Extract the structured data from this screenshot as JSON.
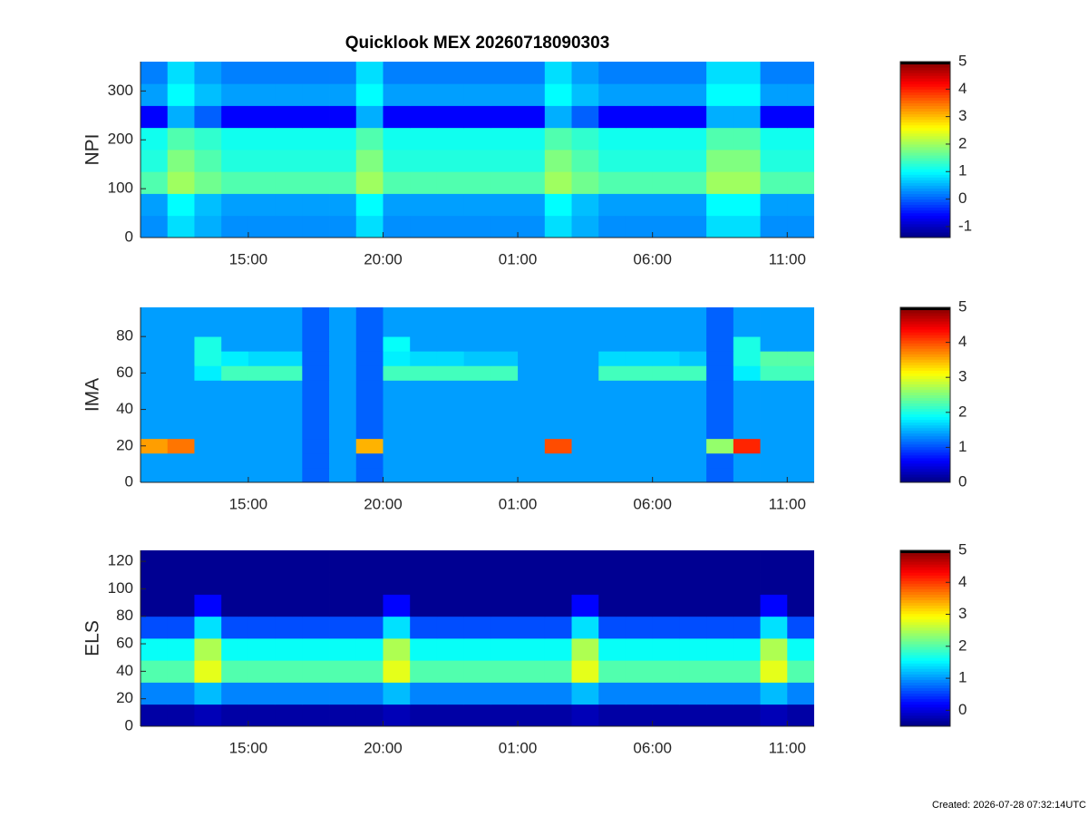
{
  "footer": "Created: 2026-07-28 07:32:14UTC",
  "chart_data": [
    {
      "type": "heatmap",
      "title": "Quicklook MEX 20260718090303",
      "ylabel": "NPI",
      "xlim": [
        0,
        25
      ],
      "ylim": [
        0,
        360
      ],
      "xticks": [
        {
          "value": 4,
          "label": "15:00"
        },
        {
          "value": 9,
          "label": "20:00"
        },
        {
          "value": 14,
          "label": "01:00"
        },
        {
          "value": 19,
          "label": "06:00"
        },
        {
          "value": 24,
          "label": "11:00"
        }
      ],
      "yticks": [
        0,
        100,
        200,
        300
      ],
      "clim": [
        -1.4,
        5
      ],
      "cticks": [
        -1,
        0,
        1,
        2,
        3,
        4,
        5
      ],
      "colormap": "jet",
      "x": [
        0.5,
        1.5,
        2.5,
        3.5,
        4.5,
        5.5,
        6.5,
        7.5,
        8.5,
        9.5,
        10.5,
        11.5,
        12.5,
        13.5,
        14.5,
        15.5,
        16.5,
        17.5,
        18.5,
        19.5,
        20.5,
        21.5,
        22.5,
        23.5,
        24.5
      ],
      "y": [
        22.5,
        67.5,
        112.5,
        157.5,
        202.5,
        247.5,
        292.5,
        337.5
      ],
      "z": [
        [
          0.3,
          0.8,
          0.5,
          0.3,
          0.3,
          0.3,
          0.3,
          0.3,
          0.8,
          0.3,
          0.3,
          0.3,
          0.3,
          0.3,
          0.3,
          0.8,
          0.5,
          0.3,
          0.3,
          0.3,
          0.3,
          0.8,
          0.8,
          0.3,
          0.3
        ],
        [
          0.4,
          1.0,
          0.6,
          0.4,
          0.4,
          0.4,
          0.4,
          0.4,
          1.0,
          0.4,
          0.4,
          0.4,
          0.4,
          0.4,
          0.4,
          1.0,
          0.6,
          0.4,
          0.4,
          0.4,
          0.4,
          1.0,
          1.0,
          0.4,
          0.4
        ],
        [
          1.5,
          2.0,
          1.7,
          1.5,
          1.5,
          1.5,
          1.5,
          1.5,
          2.0,
          1.5,
          1.5,
          1.5,
          1.5,
          1.5,
          1.5,
          2.0,
          1.7,
          1.5,
          1.5,
          1.5,
          1.5,
          2.0,
          2.0,
          1.5,
          1.5
        ],
        [
          1.2,
          1.8,
          1.5,
          1.2,
          1.2,
          1.2,
          1.2,
          1.2,
          1.8,
          1.2,
          1.2,
          1.2,
          1.2,
          1.2,
          1.2,
          1.8,
          1.5,
          1.2,
          1.2,
          1.2,
          1.2,
          1.8,
          1.8,
          1.2,
          1.2
        ],
        [
          1.1,
          1.5,
          1.3,
          1.1,
          1.1,
          1.1,
          1.1,
          1.1,
          1.5,
          1.1,
          1.1,
          1.1,
          1.1,
          1.1,
          1.1,
          1.5,
          1.3,
          1.1,
          1.1,
          1.1,
          1.1,
          1.5,
          1.5,
          1.1,
          1.1
        ],
        [
          -0.6,
          0.5,
          0.0,
          -0.6,
          -0.6,
          -0.6,
          -0.6,
          -0.6,
          0.5,
          -0.6,
          -0.6,
          -0.6,
          -0.6,
          -0.6,
          -0.6,
          0.5,
          0.0,
          -0.6,
          -0.6,
          -0.6,
          -0.6,
          0.5,
          0.5,
          -0.6,
          -0.6
        ],
        [
          0.4,
          1.0,
          0.6,
          0.4,
          0.4,
          0.4,
          0.4,
          0.4,
          1.0,
          0.4,
          0.4,
          0.4,
          0.4,
          0.4,
          0.4,
          1.0,
          0.6,
          0.4,
          0.4,
          0.4,
          0.4,
          1.0,
          1.0,
          0.4,
          0.4
        ],
        [
          0.2,
          0.8,
          0.4,
          0.2,
          0.2,
          0.2,
          0.2,
          0.2,
          0.8,
          0.2,
          0.2,
          0.2,
          0.2,
          0.2,
          0.2,
          0.8,
          0.4,
          0.2,
          0.2,
          0.2,
          0.2,
          0.8,
          0.8,
          0.2,
          0.2
        ]
      ]
    },
    {
      "type": "heatmap",
      "ylabel": "IMA",
      "xlim": [
        0,
        25
      ],
      "ylim": [
        0,
        96
      ],
      "xticks": [
        {
          "value": 4,
          "label": "15:00"
        },
        {
          "value": 9,
          "label": "20:00"
        },
        {
          "value": 14,
          "label": "01:00"
        },
        {
          "value": 19,
          "label": "06:00"
        },
        {
          "value": 24,
          "label": "11:00"
        }
      ],
      "yticks": [
        0,
        20,
        40,
        60,
        80
      ],
      "clim": [
        0,
        5
      ],
      "cticks": [
        0,
        1,
        2,
        3,
        4,
        5
      ],
      "colormap": "jet",
      "x": [
        0.5,
        1.5,
        2.5,
        3.5,
        4.5,
        5.5,
        6.5,
        7.5,
        8.5,
        9.5,
        10.5,
        11.5,
        12.5,
        13.5,
        14.5,
        15.5,
        16.5,
        17.5,
        18.5,
        19.5,
        20.5,
        21.5,
        22.5,
        23.5,
        24.5
      ],
      "y": [
        4,
        12,
        20,
        28,
        36,
        44,
        52,
        60,
        68,
        76,
        84,
        92
      ],
      "z": [
        [
          1.4,
          1.4,
          1.4,
          1.4,
          1.4,
          1.4,
          1.1,
          1.4,
          1.1,
          1.4,
          1.4,
          1.4,
          1.4,
          1.4,
          1.4,
          1.4,
          1.4,
          1.4,
          1.4,
          1.4,
          1.4,
          1.1,
          1.4,
          1.4,
          1.4
        ],
        [
          1.4,
          1.4,
          1.4,
          1.4,
          1.4,
          1.4,
          1.1,
          1.4,
          1.1,
          1.4,
          1.4,
          1.4,
          1.4,
          1.4,
          1.4,
          1.4,
          1.4,
          1.4,
          1.4,
          1.4,
          1.4,
          1.1,
          1.4,
          1.4,
          1.4
        ],
        [
          3.6,
          3.8,
          1.4,
          1.4,
          1.4,
          1.4,
          1.1,
          1.4,
          3.5,
          1.4,
          1.4,
          1.4,
          1.4,
          1.4,
          1.4,
          4.0,
          1.4,
          1.4,
          1.4,
          1.4,
          1.4,
          2.6,
          4.2,
          1.4,
          1.4
        ],
        [
          1.4,
          1.4,
          1.4,
          1.4,
          1.4,
          1.4,
          1.1,
          1.4,
          1.1,
          1.4,
          1.4,
          1.4,
          1.4,
          1.4,
          1.4,
          1.4,
          1.4,
          1.4,
          1.4,
          1.4,
          1.4,
          1.1,
          1.4,
          1.4,
          1.4
        ],
        [
          1.4,
          1.4,
          1.4,
          1.4,
          1.4,
          1.4,
          1.1,
          1.4,
          1.1,
          1.4,
          1.4,
          1.4,
          1.4,
          1.4,
          1.4,
          1.4,
          1.4,
          1.4,
          1.4,
          1.4,
          1.4,
          1.1,
          1.4,
          1.4,
          1.4
        ],
        [
          1.4,
          1.4,
          1.4,
          1.4,
          1.4,
          1.4,
          1.1,
          1.4,
          1.1,
          1.4,
          1.4,
          1.4,
          1.4,
          1.4,
          1.4,
          1.4,
          1.4,
          1.4,
          1.4,
          1.4,
          1.4,
          1.1,
          1.4,
          1.4,
          1.4
        ],
        [
          1.4,
          1.4,
          1.4,
          1.4,
          1.4,
          1.4,
          1.1,
          1.4,
          1.1,
          1.4,
          1.4,
          1.4,
          1.4,
          1.4,
          1.4,
          1.4,
          1.4,
          1.4,
          1.4,
          1.4,
          1.4,
          1.1,
          1.4,
          1.4,
          1.4
        ],
        [
          1.4,
          1.4,
          1.8,
          2.2,
          2.2,
          2.2,
          1.1,
          1.4,
          1.1,
          2.2,
          2.2,
          2.2,
          2.2,
          2.2,
          1.4,
          1.4,
          1.4,
          2.2,
          2.2,
          2.2,
          2.2,
          1.1,
          1.8,
          2.2,
          2.2
        ],
        [
          1.4,
          1.4,
          2.0,
          1.8,
          1.7,
          1.7,
          1.1,
          1.4,
          1.1,
          1.8,
          1.7,
          1.7,
          1.6,
          1.6,
          1.4,
          1.4,
          1.4,
          1.7,
          1.7,
          1.7,
          1.6,
          1.1,
          2.0,
          2.3,
          2.3
        ],
        [
          1.4,
          1.4,
          2.0,
          1.4,
          1.4,
          1.4,
          1.1,
          1.4,
          1.1,
          1.9,
          1.4,
          1.4,
          1.4,
          1.4,
          1.4,
          1.4,
          1.4,
          1.4,
          1.4,
          1.4,
          1.4,
          1.1,
          2.0,
          1.4,
          1.4
        ],
        [
          1.4,
          1.4,
          1.4,
          1.4,
          1.4,
          1.4,
          1.1,
          1.4,
          1.1,
          1.4,
          1.4,
          1.4,
          1.4,
          1.4,
          1.4,
          1.4,
          1.4,
          1.4,
          1.4,
          1.4,
          1.4,
          1.1,
          1.4,
          1.4,
          1.4
        ],
        [
          1.4,
          1.4,
          1.4,
          1.4,
          1.4,
          1.4,
          1.1,
          1.4,
          1.1,
          1.4,
          1.4,
          1.4,
          1.4,
          1.4,
          1.4,
          1.4,
          1.4,
          1.4,
          1.4,
          1.4,
          1.4,
          1.1,
          1.4,
          1.4,
          1.4
        ]
      ]
    },
    {
      "type": "heatmap",
      "ylabel": "ELS",
      "xlim": [
        0,
        25
      ],
      "ylim": [
        0,
        128
      ],
      "xticks": [
        {
          "value": 4,
          "label": "15:00"
        },
        {
          "value": 9,
          "label": "20:00"
        },
        {
          "value": 14,
          "label": "01:00"
        },
        {
          "value": 19,
          "label": "06:00"
        },
        {
          "value": 24,
          "label": "11:00"
        }
      ],
      "yticks": [
        0,
        20,
        40,
        60,
        80,
        100,
        120
      ],
      "clim": [
        -0.5,
        5
      ],
      "cticks": [
        0,
        1,
        2,
        3,
        4,
        5
      ],
      "colormap": "jet",
      "x": [
        0.5,
        1.5,
        2.5,
        3.5,
        4.5,
        5.5,
        6.5,
        7.5,
        8.5,
        9.5,
        10.5,
        11.5,
        12.5,
        13.5,
        14.5,
        15.5,
        16.5,
        17.5,
        18.5,
        19.5,
        20.5,
        21.5,
        22.5,
        23.5,
        24.5
      ],
      "y": [
        8,
        24,
        40,
        56,
        72,
        88,
        104,
        120
      ],
      "z": [
        [
          -0.3,
          -0.3,
          -0.2,
          -0.3,
          -0.3,
          -0.3,
          -0.3,
          -0.3,
          -0.3,
          -0.2,
          -0.3,
          -0.3,
          -0.3,
          -0.3,
          -0.3,
          -0.3,
          -0.2,
          -0.3,
          -0.3,
          -0.3,
          -0.3,
          -0.3,
          -0.3,
          -0.2,
          -0.3
        ],
        [
          0.9,
          0.9,
          1.2,
          0.9,
          0.9,
          0.9,
          0.9,
          0.9,
          0.9,
          1.2,
          0.9,
          0.9,
          0.9,
          0.9,
          0.9,
          0.9,
          1.2,
          0.9,
          0.9,
          0.9,
          0.9,
          0.9,
          0.9,
          1.2,
          0.9
        ],
        [
          2.0,
          2.0,
          2.8,
          2.0,
          2.0,
          2.0,
          2.0,
          2.0,
          2.0,
          2.8,
          2.0,
          2.0,
          2.0,
          2.0,
          2.0,
          2.0,
          2.8,
          2.0,
          2.0,
          2.0,
          2.0,
          2.0,
          2.0,
          2.8,
          2.0
        ],
        [
          1.6,
          1.6,
          2.5,
          1.6,
          1.6,
          1.6,
          1.6,
          1.6,
          1.6,
          2.5,
          1.6,
          1.6,
          1.6,
          1.6,
          1.6,
          1.6,
          2.5,
          1.6,
          1.6,
          1.6,
          1.6,
          1.6,
          1.6,
          2.5,
          1.6
        ],
        [
          0.6,
          0.6,
          1.4,
          0.6,
          0.6,
          0.6,
          0.6,
          0.6,
          0.6,
          1.4,
          0.6,
          0.6,
          0.6,
          0.6,
          0.6,
          0.6,
          1.4,
          0.6,
          0.6,
          0.6,
          0.6,
          0.6,
          0.6,
          1.4,
          0.6
        ],
        [
          -0.4,
          -0.4,
          0.2,
          -0.4,
          -0.4,
          -0.4,
          -0.4,
          -0.4,
          -0.4,
          0.2,
          -0.4,
          -0.4,
          -0.4,
          -0.4,
          -0.4,
          -0.4,
          0.2,
          -0.4,
          -0.4,
          -0.4,
          -0.4,
          -0.4,
          -0.4,
          0.2,
          -0.4
        ],
        [
          -0.4,
          -0.4,
          -0.4,
          -0.4,
          -0.4,
          -0.4,
          -0.4,
          -0.4,
          -0.4,
          -0.4,
          -0.4,
          -0.4,
          -0.4,
          -0.4,
          -0.4,
          -0.4,
          -0.4,
          -0.4,
          -0.4,
          -0.4,
          -0.4,
          -0.4,
          -0.4,
          -0.4,
          -0.4
        ],
        [
          -0.4,
          -0.4,
          -0.4,
          -0.4,
          -0.4,
          -0.4,
          -0.4,
          -0.4,
          -0.4,
          -0.4,
          -0.4,
          -0.4,
          -0.4,
          -0.4,
          -0.4,
          -0.4,
          -0.4,
          -0.4,
          -0.4,
          -0.4,
          -0.4,
          -0.4,
          -0.4,
          -0.4,
          -0.4
        ]
      ]
    }
  ]
}
